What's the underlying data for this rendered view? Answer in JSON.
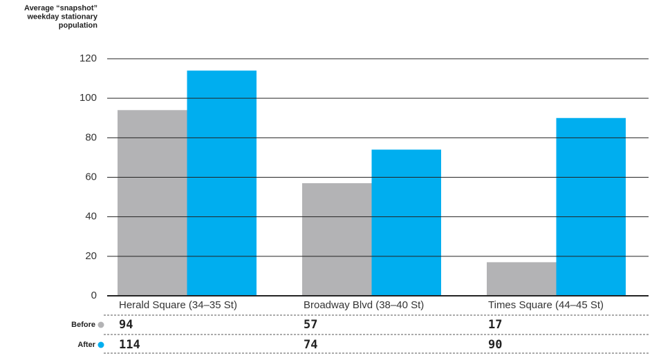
{
  "chart_data": {
    "type": "bar",
    "ylabel": [
      "Average “snapshot”",
      "weekday stationary",
      "population"
    ],
    "categories": [
      "Herald Square (34–35 St)",
      "Broadway Blvd (38–40 St)",
      "Times Square (44–45 St)"
    ],
    "series": [
      {
        "name": "Before",
        "color": "#b3b3b5",
        "values": [
          94,
          57,
          17
        ]
      },
      {
        "name": "After",
        "color": "#00aeef",
        "values": [
          114,
          74,
          90
        ]
      }
    ],
    "ylim": [
      0,
      120
    ],
    "yticks": [
      0,
      20,
      40,
      60,
      80,
      100,
      120
    ],
    "grid": true
  }
}
